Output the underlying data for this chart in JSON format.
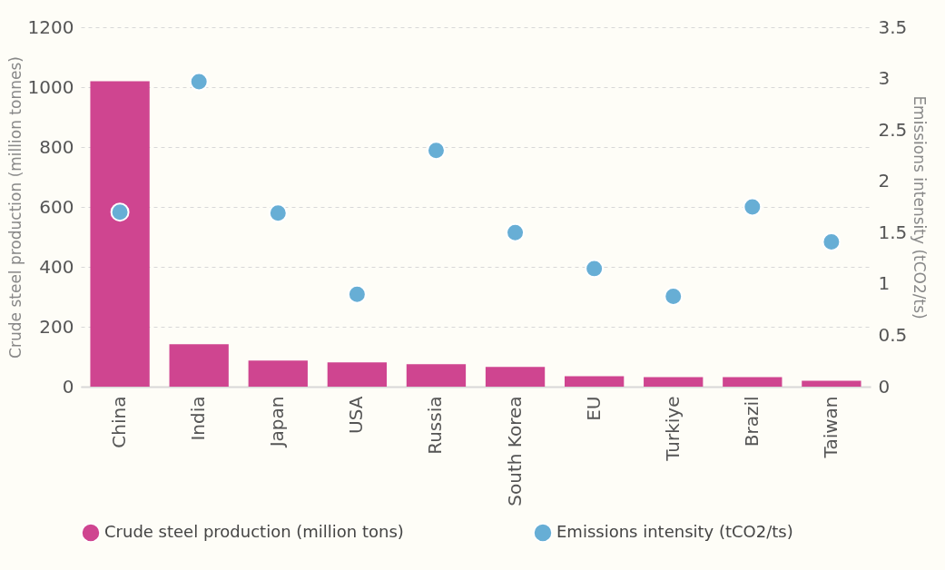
{
  "chart_data": {
    "type": "bar",
    "xlabel": null,
    "ylabel": "Crude steel production (million tonnes)",
    "y2label": "Emissions intensity (tCO2/ts)",
    "categories": [
      "China",
      "India",
      "Japan",
      "USA",
      "Russia",
      "South Korea",
      "EU",
      "Turkiye",
      "Brazil",
      "Taiwan"
    ],
    "series": [
      {
        "name": "Crude steel production (million tons)",
        "color": "#cf4590",
        "values": [
          1020,
          142,
          87,
          81,
          75,
          66,
          35,
          32,
          32,
          20
        ]
      },
      {
        "name": "Emissions intensity (tCO2/ts)",
        "type": "scatter",
        "axis": "y2",
        "color": "#67aed5",
        "values": [
          1.7,
          2.97,
          1.69,
          0.9,
          2.3,
          1.5,
          1.15,
          0.88,
          1.75,
          1.41
        ]
      }
    ],
    "ylim": [
      0,
      1200
    ],
    "yticks": [
      0,
      200,
      400,
      600,
      800,
      1000,
      1200
    ],
    "y2lim": [
      0,
      3.5
    ],
    "y2ticks": [
      0,
      0.5,
      1,
      1.5,
      2,
      2.5,
      3,
      3.5
    ],
    "grid": "y",
    "legend": "bottom",
    "marker": "circle"
  }
}
